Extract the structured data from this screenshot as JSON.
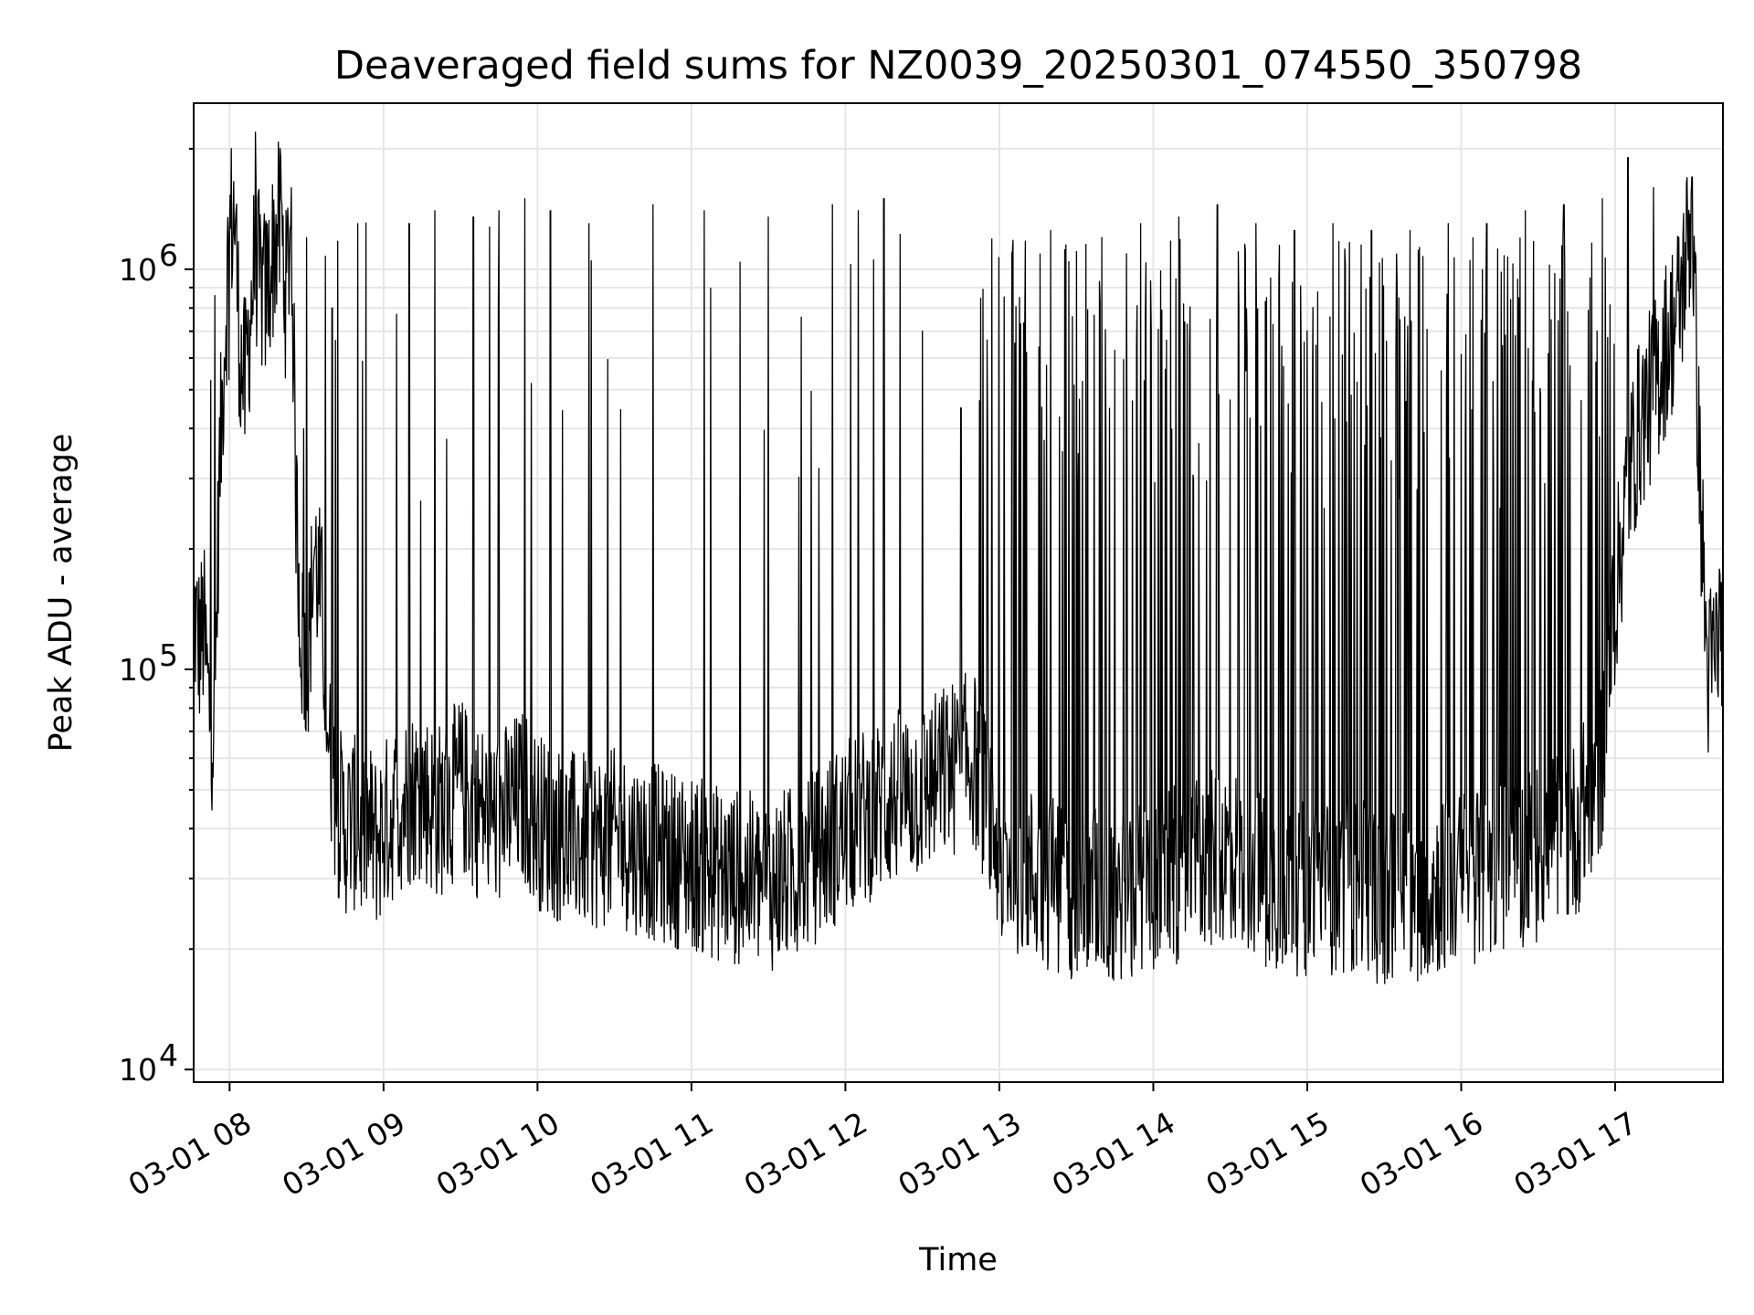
{
  "chart_data": {
    "type": "line",
    "title": "Deaveraged field sums for NZ0039_20250301_074550_350798",
    "xlabel": "Time",
    "ylabel": "Peak ADU - average",
    "yscale": "log",
    "grid": true,
    "xlim": [
      "2025-03-01 07:46",
      "2025-03-01 17:42"
    ],
    "ylim": [
      9300,
      2600000
    ],
    "x_ticks": [
      {
        "value": "2025-03-01 08:00",
        "label": "03-01 08"
      },
      {
        "value": "2025-03-01 09:00",
        "label": "03-01 09"
      },
      {
        "value": "2025-03-01 10:00",
        "label": "03-01 10"
      },
      {
        "value": "2025-03-01 11:00",
        "label": "03-01 11"
      },
      {
        "value": "2025-03-01 12:00",
        "label": "03-01 12"
      },
      {
        "value": "2025-03-01 13:00",
        "label": "03-01 13"
      },
      {
        "value": "2025-03-01 14:00",
        "label": "03-01 14"
      },
      {
        "value": "2025-03-01 15:00",
        "label": "03-01 15"
      },
      {
        "value": "2025-03-01 16:00",
        "label": "03-01 16"
      },
      {
        "value": "2025-03-01 17:00",
        "label": "03-01 17"
      }
    ],
    "y_ticks": [
      {
        "value": 10000,
        "label": "10",
        "exp": "4"
      },
      {
        "value": 100000,
        "label": "10",
        "exp": "5"
      },
      {
        "value": 1000000,
        "label": "10",
        "exp": "6"
      }
    ],
    "series": [
      {
        "color": "#000000",
        "x": [
          "2025-03-01 07:46",
          "2025-03-01 07:48",
          "2025-03-01 07:50",
          "2025-03-01 07:52",
          "2025-03-01 07:54",
          "2025-03-01 07:56",
          "2025-03-01 07:58",
          "2025-03-01 08:00",
          "2025-03-01 08:02",
          "2025-03-01 08:04",
          "2025-03-01 08:06",
          "2025-03-01 08:08",
          "2025-03-01 08:10",
          "2025-03-01 08:12",
          "2025-03-01 08:14",
          "2025-03-01 08:16",
          "2025-03-01 08:18",
          "2025-03-01 08:20",
          "2025-03-01 08:22",
          "2025-03-01 08:24",
          "2025-03-01 08:26",
          "2025-03-01 08:28",
          "2025-03-01 08:30",
          "2025-03-01 08:33",
          "2025-03-01 08:36",
          "2025-03-01 08:39",
          "2025-03-01 08:42",
          "2025-03-01 08:45",
          "2025-03-01 08:48",
          "2025-03-01 08:51",
          "2025-03-01 08:54",
          "2025-03-01 08:57",
          "2025-03-01 09:00",
          "2025-03-01 09:05",
          "2025-03-01 09:10",
          "2025-03-01 09:15",
          "2025-03-01 09:20",
          "2025-03-01 09:25",
          "2025-03-01 09:30",
          "2025-03-01 09:35",
          "2025-03-01 09:40",
          "2025-03-01 09:45",
          "2025-03-01 09:50",
          "2025-03-01 09:55",
          "2025-03-01 10:00",
          "2025-03-01 10:10",
          "2025-03-01 10:20",
          "2025-03-01 10:30",
          "2025-03-01 10:40",
          "2025-03-01 10:50",
          "2025-03-01 11:00",
          "2025-03-01 11:10",
          "2025-03-01 11:20",
          "2025-03-01 11:30",
          "2025-03-01 11:40",
          "2025-03-01 11:50",
          "2025-03-01 12:00",
          "2025-03-01 12:10",
          "2025-03-01 12:20",
          "2025-03-01 12:30",
          "2025-03-01 12:40",
          "2025-03-01 12:50",
          "2025-03-01 13:00",
          "2025-03-01 13:15",
          "2025-03-01 13:30",
          "2025-03-01 13:45",
          "2025-03-01 14:00",
          "2025-03-01 14:15",
          "2025-03-01 14:30",
          "2025-03-01 14:45",
          "2025-03-01 15:00",
          "2025-03-01 15:15",
          "2025-03-01 15:30",
          "2025-03-01 15:45",
          "2025-03-01 16:00",
          "2025-03-01 16:15",
          "2025-03-01 16:30",
          "2025-03-01 16:45",
          "2025-03-01 16:55",
          "2025-03-01 17:00",
          "2025-03-01 17:05",
          "2025-03-01 17:10",
          "2025-03-01 17:15",
          "2025-03-01 17:20",
          "2025-03-01 17:25",
          "2025-03-01 17:30",
          "2025-03-01 17:33",
          "2025-03-01 17:36",
          "2025-03-01 17:39",
          "2025-03-01 17:42"
        ],
        "y": [
          140000,
          115000,
          125000,
          80000,
          70000,
          300000,
          650000,
          1250000,
          1400000,
          620000,
          500000,
          750000,
          1100000,
          900000,
          850000,
          1000000,
          1200000,
          1300000,
          850000,
          1400000,
          250000,
          120000,
          90000,
          200000,
          140000,
          60000,
          45000,
          40000,
          42000,
          38000,
          40000,
          37000,
          40000,
          45000,
          48000,
          50000,
          44000,
          46000,
          52000,
          45000,
          44000,
          42000,
          46000,
          48000,
          42000,
          38000,
          37000,
          38000,
          36000,
          34000,
          33000,
          31000,
          30000,
          29000,
          31000,
          35000,
          40000,
          44000,
          48000,
          50000,
          56000,
          60000,
          35000,
          30000,
          28000,
          27000,
          29000,
          32000,
          35000,
          30000,
          28000,
          29000,
          27000,
          28000,
          30000,
          32000,
          35000,
          40000,
          60000,
          150000,
          300000,
          420000,
          500000,
          650000,
          800000,
          1400000,
          300000,
          95000,
          110000,
          140000
        ]
      }
    ],
    "spikes": [
      [
        "2025-03-01 08:10",
        2200000
      ],
      [
        "2025-03-01 08:20",
        1900000
      ],
      [
        "2025-03-01 08:30",
        1200000
      ],
      [
        "2025-03-01 08:40",
        800000
      ],
      [
        "2025-03-01 08:50",
        1300000
      ],
      [
        "2025-03-01 09:10",
        1300000
      ],
      [
        "2025-03-01 09:20",
        1400000
      ],
      [
        "2025-03-01 09:35",
        1350000
      ],
      [
        "2025-03-01 09:45",
        1400000
      ],
      [
        "2025-03-01 09:55",
        1500000
      ],
      [
        "2025-03-01 10:05",
        1400000
      ],
      [
        "2025-03-01 10:20",
        1300000
      ],
      [
        "2025-03-01 10:45",
        1450000
      ],
      [
        "2025-03-01 11:05",
        1400000
      ],
      [
        "2025-03-01 11:30",
        1350000
      ],
      [
        "2025-03-01 11:55",
        1450000
      ],
      [
        "2025-03-01 12:05",
        1400000
      ],
      [
        "2025-03-01 12:15",
        1500000
      ],
      [
        "2025-03-01 12:30",
        700000
      ],
      [
        "2025-03-01 12:45",
        450000
      ],
      [
        "2025-03-01 13:05",
        1100000
      ],
      [
        "2025-03-01 13:20",
        1250000
      ],
      [
        "2025-03-01 13:40",
        1200000
      ],
      [
        "2025-03-01 13:55",
        1300000
      ],
      [
        "2025-03-01 14:10",
        1350000
      ],
      [
        "2025-03-01 14:25",
        1450000
      ],
      [
        "2025-03-01 14:40",
        1300000
      ],
      [
        "2025-03-01 14:55",
        1250000
      ],
      [
        "2025-03-01 15:10",
        1300000
      ],
      [
        "2025-03-01 15:25",
        1250000
      ],
      [
        "2025-03-01 15:40",
        1250000
      ],
      [
        "2025-03-01 15:55",
        1300000
      ],
      [
        "2025-03-01 16:10",
        1300000
      ],
      [
        "2025-03-01 16:25",
        1400000
      ],
      [
        "2025-03-01 16:40",
        1450000
      ],
      [
        "2025-03-01 16:55",
        1500000
      ],
      [
        "2025-03-01 17:05",
        1900000
      ],
      [
        "2025-03-01 17:15",
        1600000
      ],
      [
        "2025-03-01 17:30",
        1700000
      ]
    ]
  }
}
